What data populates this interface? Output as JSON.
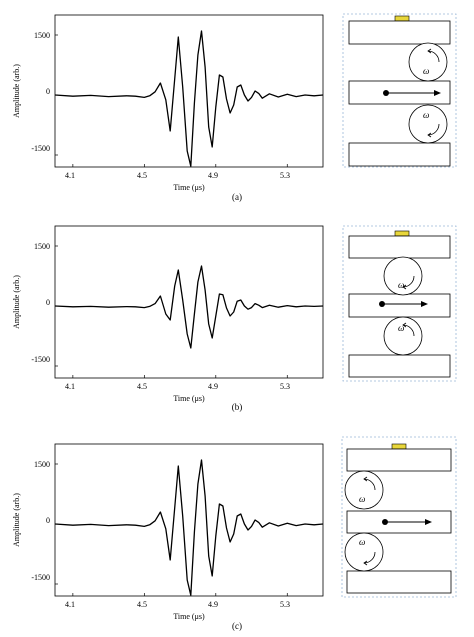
{
  "figure": {
    "panels": [
      {
        "caption": "(a)",
        "chart_data": {
          "type": "line",
          "xlabel": "Time (μs)",
          "ylabel": "Amplitude (arb.)",
          "xlim": [
            4.0,
            5.5
          ],
          "ylim": [
            -1800,
            2000
          ],
          "xticks": [
            "4.1",
            "4.5",
            "4.9",
            "5.3"
          ],
          "yticks": [
            "1500",
            "0",
            "-1500"
          ],
          "series": [
            {
              "color": "#000000",
              "points": [
                [
                  4.0,
                  0
                ],
                [
                  4.1,
                  -30
                ],
                [
                  4.2,
                  -10
                ],
                [
                  4.3,
                  -40
                ],
                [
                  4.4,
                  -20
                ],
                [
                  4.45,
                  -30
                ],
                [
                  4.5,
                  -60
                ],
                [
                  4.53,
                  -20
                ],
                [
                  4.56,
                  80
                ],
                [
                  4.59,
                  300
                ],
                [
                  4.62,
                  -120
                ],
                [
                  4.645,
                  -900
                ],
                [
                  4.67,
                  400
                ],
                [
                  4.69,
                  1450
                ],
                [
                  4.715,
                  200
                ],
                [
                  4.74,
                  -1400
                ],
                [
                  4.76,
                  -1780
                ],
                [
                  4.78,
                  -200
                ],
                [
                  4.8,
                  1000
                ],
                [
                  4.82,
                  1600
                ],
                [
                  4.84,
                  700
                ],
                [
                  4.86,
                  -800
                ],
                [
                  4.88,
                  -1300
                ],
                [
                  4.9,
                  -300
                ],
                [
                  4.92,
                  500
                ],
                [
                  4.94,
                  450
                ],
                [
                  4.96,
                  -100
                ],
                [
                  4.98,
                  -450
                ],
                [
                  5.0,
                  -250
                ],
                [
                  5.02,
                  200
                ],
                [
                  5.04,
                  250
                ],
                [
                  5.06,
                  0
                ],
                [
                  5.08,
                  -150
                ],
                [
                  5.1,
                  -60
                ],
                [
                  5.12,
                  100
                ],
                [
                  5.14,
                  40
                ],
                [
                  5.16,
                  -80
                ],
                [
                  5.2,
                  30
                ],
                [
                  5.25,
                  -50
                ],
                [
                  5.3,
                  20
                ],
                [
                  5.35,
                  -40
                ],
                [
                  5.4,
                  0
                ],
                [
                  5.45,
                  -20
                ],
                [
                  5.5,
                  0
                ]
              ]
            }
          ]
        },
        "schematic": {
          "rotation": [
            "ccw",
            "cw"
          ],
          "omega": "ω",
          "transducer_color": "#e8d63a",
          "lattice_layout": "rollers-right"
        }
      },
      {
        "caption": "(b)",
        "chart_data": {
          "type": "line",
          "xlabel": "Time (μs)",
          "ylabel": "Amplitude (arb.)",
          "xlim": [
            4.0,
            5.5
          ],
          "ylim": [
            -1800,
            2000
          ],
          "xticks": [
            "4.1",
            "4.5",
            "4.9",
            "5.3"
          ],
          "yticks": [
            "1500",
            "0",
            "-1500"
          ],
          "series": [
            {
              "color": "#000000",
              "points": [
                [
                  4.0,
                  0
                ],
                [
                  4.1,
                  -20
                ],
                [
                  4.2,
                  -10
                ],
                [
                  4.3,
                  -30
                ],
                [
                  4.4,
                  -15
                ],
                [
                  4.45,
                  -20
                ],
                [
                  4.5,
                  -40
                ],
                [
                  4.53,
                  -10
                ],
                [
                  4.56,
                  60
                ],
                [
                  4.59,
                  250
                ],
                [
                  4.62,
                  -200
                ],
                [
                  4.645,
                  -350
                ],
                [
                  4.67,
                  500
                ],
                [
                  4.69,
                  900
                ],
                [
                  4.715,
                  150
                ],
                [
                  4.74,
                  -700
                ],
                [
                  4.76,
                  -1050
                ],
                [
                  4.78,
                  -200
                ],
                [
                  4.8,
                  600
                ],
                [
                  4.82,
                  1000
                ],
                [
                  4.84,
                  400
                ],
                [
                  4.86,
                  -450
                ],
                [
                  4.88,
                  -800
                ],
                [
                  4.9,
                  -250
                ],
                [
                  4.92,
                  300
                ],
                [
                  4.94,
                  280
                ],
                [
                  4.96,
                  -50
                ],
                [
                  4.98,
                  -250
                ],
                [
                  5.0,
                  -150
                ],
                [
                  5.02,
                  120
                ],
                [
                  5.04,
                  150
                ],
                [
                  5.06,
                  0
                ],
                [
                  5.08,
                  -80
                ],
                [
                  5.1,
                  -40
                ],
                [
                  5.12,
                  60
                ],
                [
                  5.14,
                  20
                ],
                [
                  5.16,
                  -40
                ],
                [
                  5.2,
                  20
                ],
                [
                  5.25,
                  -30
                ],
                [
                  5.3,
                  10
                ],
                [
                  5.35,
                  -20
                ],
                [
                  5.4,
                  0
                ],
                [
                  5.45,
                  -10
                ],
                [
                  5.5,
                  0
                ]
              ]
            }
          ]
        },
        "schematic": {
          "rotation": [
            "cw",
            "ccw"
          ],
          "omega": "ω",
          "transducer_color": "#e8d63a",
          "lattice_layout": "rollers-center"
        }
      },
      {
        "caption": "(c)",
        "chart_data": {
          "type": "line",
          "xlabel": "Time (μs)",
          "ylabel": "Amplitude (arb.)",
          "xlim": [
            4.0,
            5.5
          ],
          "ylim": [
            -1800,
            2000
          ],
          "xticks": [
            "4.1",
            "4.5",
            "4.9",
            "5.3"
          ],
          "yticks": [
            "1500",
            "0",
            "-1500"
          ],
          "series": [
            {
              "color": "#000000",
              "points": [
                [
                  4.0,
                  0
                ],
                [
                  4.1,
                  -30
                ],
                [
                  4.2,
                  -10
                ],
                [
                  4.3,
                  -40
                ],
                [
                  4.4,
                  -20
                ],
                [
                  4.45,
                  -30
                ],
                [
                  4.5,
                  -60
                ],
                [
                  4.53,
                  -20
                ],
                [
                  4.56,
                  80
                ],
                [
                  4.59,
                  300
                ],
                [
                  4.62,
                  -120
                ],
                [
                  4.645,
                  -900
                ],
                [
                  4.67,
                  400
                ],
                [
                  4.69,
                  1450
                ],
                [
                  4.715,
                  200
                ],
                [
                  4.74,
                  -1400
                ],
                [
                  4.76,
                  -1780
                ],
                [
                  4.78,
                  -200
                ],
                [
                  4.8,
                  1000
                ],
                [
                  4.82,
                  1600
                ],
                [
                  4.84,
                  700
                ],
                [
                  4.86,
                  -800
                ],
                [
                  4.88,
                  -1300
                ],
                [
                  4.9,
                  -300
                ],
                [
                  4.92,
                  500
                ],
                [
                  4.94,
                  450
                ],
                [
                  4.96,
                  -100
                ],
                [
                  4.98,
                  -450
                ],
                [
                  5.0,
                  -250
                ],
                [
                  5.02,
                  200
                ],
                [
                  5.04,
                  250
                ],
                [
                  5.06,
                  0
                ],
                [
                  5.08,
                  -150
                ],
                [
                  5.1,
                  -60
                ],
                [
                  5.12,
                  100
                ],
                [
                  5.14,
                  40
                ],
                [
                  5.16,
                  -80
                ],
                [
                  5.2,
                  30
                ],
                [
                  5.25,
                  -50
                ],
                [
                  5.3,
                  20
                ],
                [
                  5.35,
                  -40
                ],
                [
                  5.4,
                  0
                ],
                [
                  5.45,
                  -20
                ],
                [
                  5.5,
                  0
                ]
              ]
            }
          ]
        },
        "schematic": {
          "rotation": [
            "ccw",
            "cw"
          ],
          "omega": "ω",
          "transducer_color": "#e8d63a",
          "lattice_layout": "rollers-left"
        }
      }
    ]
  }
}
